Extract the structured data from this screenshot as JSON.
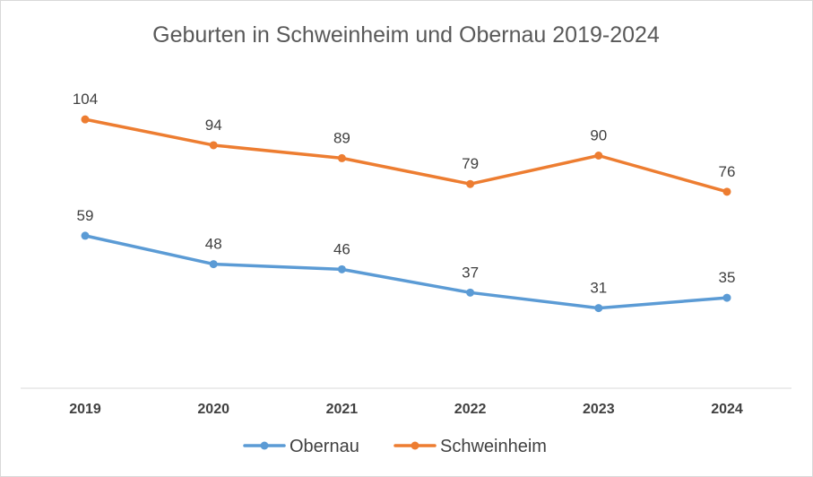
{
  "chart_data": {
    "type": "line",
    "title": "Geburten in Schweinheim und Obernau 2019-2024",
    "categories": [
      "2019",
      "2020",
      "2021",
      "2022",
      "2023",
      "2024"
    ],
    "series": [
      {
        "name": "Obernau",
        "color": "#5b9bd5",
        "values": [
          59,
          48,
          46,
          37,
          31,
          35
        ]
      },
      {
        "name": "Schweinheim",
        "color": "#ed7d31",
        "values": [
          104,
          94,
          89,
          79,
          90,
          76
        ]
      }
    ],
    "ylim": [
      0,
      120
    ],
    "grid": false,
    "legend_position": "bottom",
    "data_labels": true
  }
}
